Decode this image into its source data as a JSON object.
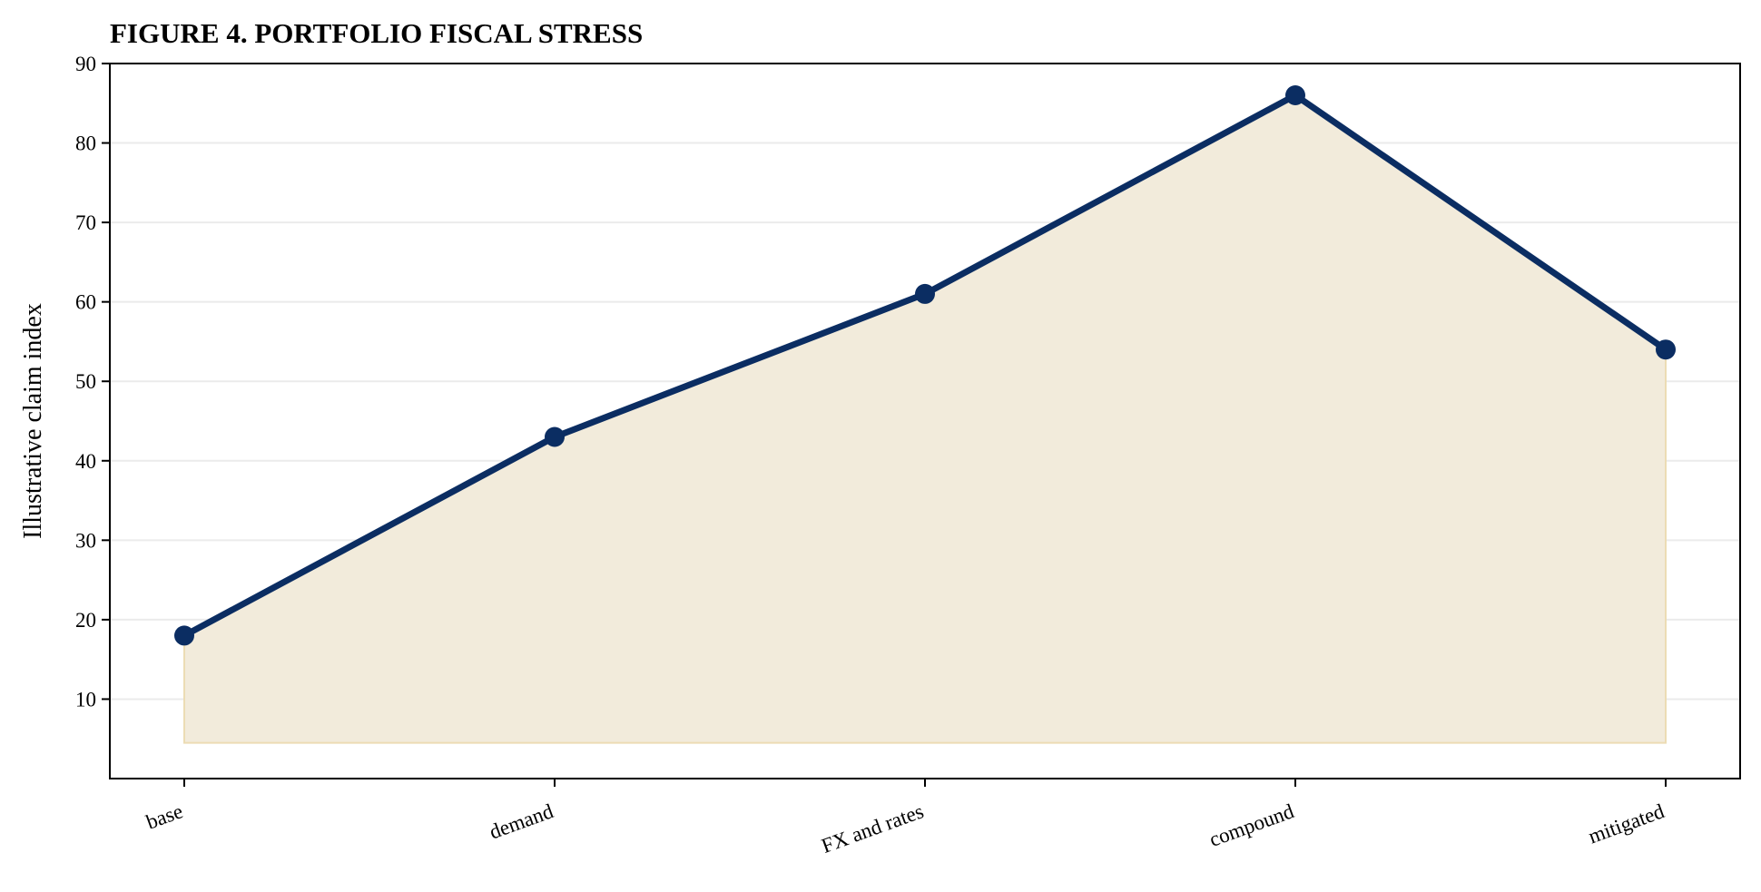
{
  "chart_data": {
    "type": "area",
    "title": "FIGURE 4. PORTFOLIO FISCAL STRESS",
    "xlabel": "",
    "ylabel": "Illustrative claim index",
    "categories": [
      "base",
      "demand",
      "FX and rates",
      "compound",
      "mitigated"
    ],
    "series": [
      {
        "values": [
          18,
          43,
          61,
          86,
          54
        ],
        "color": "#0b2d62"
      }
    ],
    "area_baseline": 4.5,
    "area_color": "#f2ebdb",
    "area_edge_color": "#ecdcb4",
    "ylim": [
      0,
      90
    ],
    "yticks": [
      10,
      20,
      30,
      40,
      50,
      60,
      70,
      80,
      90
    ],
    "grid": "horizontal",
    "legend": "none",
    "x_tick_rotation": "slanted"
  }
}
